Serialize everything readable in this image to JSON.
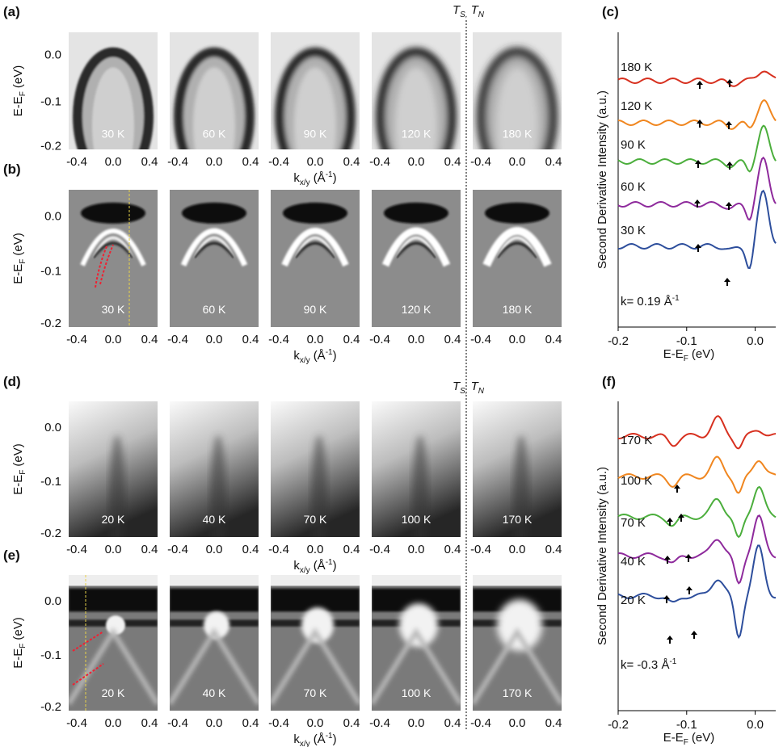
{
  "image_rows": [
    {
      "label": "(a)",
      "temperatures": [
        "30 K",
        "60 K",
        "90 K",
        "120 K",
        "180 K"
      ]
    },
    {
      "label": "(b)",
      "temperatures": [
        "30 K",
        "60 K",
        "90 K",
        "120 K",
        "180 K"
      ]
    },
    {
      "label": "(d)",
      "temperatures": [
        "20 K",
        "40 K",
        "70 K",
        "100 K",
        "170 K"
      ]
    },
    {
      "label": "(e)",
      "temperatures": [
        "20 K",
        "40 K",
        "70 K",
        "100 K",
        "170 K"
      ]
    }
  ],
  "image_yticks": [
    "0.0",
    "-0.1",
    "-0.2"
  ],
  "image_xticks": [
    "-0.4",
    "0.0",
    "0.4"
  ],
  "energy_label_parts": [
    "E-E",
    "F",
    "(eV)"
  ],
  "k_axis_label_parts": [
    "k",
    "x/y",
    "(Å",
    "-1",
    ")"
  ],
  "transition_label_parts": [
    "T",
    "S,",
    "T",
    "N"
  ],
  "curve_ylabel": "Second Derivative Intensity (a.u.)",
  "curve_panels": [
    {
      "label": "(c)",
      "temperatures": [
        "180 K",
        "120 K",
        "90 K",
        "60 K",
        "30 K"
      ],
      "k_label_parts": [
        "k= 0.19 Å",
        "-1"
      ],
      "xlim": [
        -0.2,
        0.03
      ],
      "xticks": [
        -0.2,
        -0.1,
        {
          "value": 0,
          "label": "0.0"
        }
      ]
    },
    {
      "label": "(f)",
      "temperatures": [
        "170 K",
        "100 K",
        "70 K",
        "40 K",
        "20 K"
      ],
      "k_label_parts": [
        "k= -0.3 Å",
        "-1"
      ],
      "xlim": [
        -0.2,
        0.03
      ],
      "xticks": [
        -0.2,
        -0.1,
        {
          "value": 0,
          "label": "0.0"
        }
      ]
    }
  ]
}
